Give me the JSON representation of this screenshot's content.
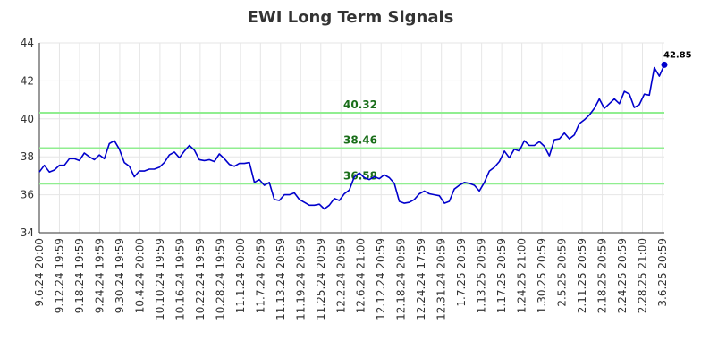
{
  "chart_data": {
    "type": "line",
    "title": "EWI Long Term Signals",
    "xlabel": "",
    "ylabel": "",
    "ylim": [
      34,
      44
    ],
    "yticks": [
      34,
      36,
      38,
      40,
      42,
      44
    ],
    "grid": true,
    "x_tick_labels": [
      "9.6.24 20:00",
      "9.12.24 19:59",
      "9.18.24 19:59",
      "9.24.24 19:59",
      "9.30.24 19:59",
      "10.4.24 20:00",
      "10.10.24 19:59",
      "10.16.24 19:59",
      "10.22.24 19:59",
      "10.28.24 19:59",
      "11.1.24 20:00",
      "11.7.24 20:59",
      "11.13.24 20:59",
      "11.19.24 20:59",
      "11.25.24 20:59",
      "12.2.24 20:59",
      "12.6.24 21:00",
      "12.12.24 20:59",
      "12.18.24 20:59",
      "12.24.24 17:59",
      "12.31.24 20:59",
      "1.7.25 20:59",
      "1.13.25 20:59",
      "1.17.25 20:59",
      "1.24.25 21:00",
      "1.30.25 20:59",
      "2.5.25 20:59",
      "2.11.25 20:59",
      "2.18.25 20:59",
      "2.24.25 20:59",
      "2.28.25 21:00",
      "3.6.25 20:59"
    ],
    "series": [
      {
        "color": "#0000cc",
        "values": [
          37.2,
          37.55,
          37.2,
          37.3,
          37.55,
          37.55,
          37.9,
          37.9,
          37.8,
          38.2,
          38.0,
          37.85,
          38.1,
          37.9,
          38.7,
          38.85,
          38.4,
          37.7,
          37.5,
          36.95,
          37.25,
          37.25,
          37.35,
          37.35,
          37.45,
          37.7,
          38.1,
          38.25,
          37.95,
          38.3,
          38.6,
          38.35,
          37.85,
          37.8,
          37.85,
          37.75,
          38.15,
          37.9,
          37.6,
          37.5,
          37.65,
          37.65,
          37.7,
          36.65,
          36.8,
          36.5,
          36.65,
          35.75,
          35.7,
          36.0,
          36.0,
          36.1,
          35.75,
          35.6,
          35.45,
          35.45,
          35.5,
          35.25,
          35.45,
          35.8,
          35.7,
          36.05,
          36.25,
          36.95,
          37.15,
          36.9,
          36.8,
          36.95,
          36.85,
          37.05,
          36.9,
          36.6,
          35.65,
          35.55,
          35.6,
          35.75,
          36.05,
          36.2,
          36.05,
          36.0,
          35.95,
          35.55,
          35.65,
          36.3,
          36.5,
          36.65,
          36.6,
          36.5,
          36.2,
          36.65,
          37.25,
          37.45,
          37.75,
          38.3,
          37.95,
          38.4,
          38.3,
          38.85,
          38.6,
          38.6,
          38.8,
          38.55,
          38.05,
          38.9,
          38.95,
          39.25,
          38.95,
          39.15,
          39.75,
          39.95,
          40.2,
          40.55,
          41.05,
          40.55,
          40.8,
          41.05,
          40.8,
          41.45,
          41.3,
          40.6,
          40.75,
          41.3,
          41.25,
          42.7,
          42.25,
          42.85
        ]
      }
    ],
    "levels": [
      {
        "value": 40.32,
        "label": "40.32",
        "color": "#90ee90"
      },
      {
        "value": 38.46,
        "label": "38.46",
        "color": "#90ee90"
      },
      {
        "value": 36.58,
        "label": "36.58",
        "color": "#90ee90"
      }
    ],
    "last_point_label": "42.85"
  }
}
